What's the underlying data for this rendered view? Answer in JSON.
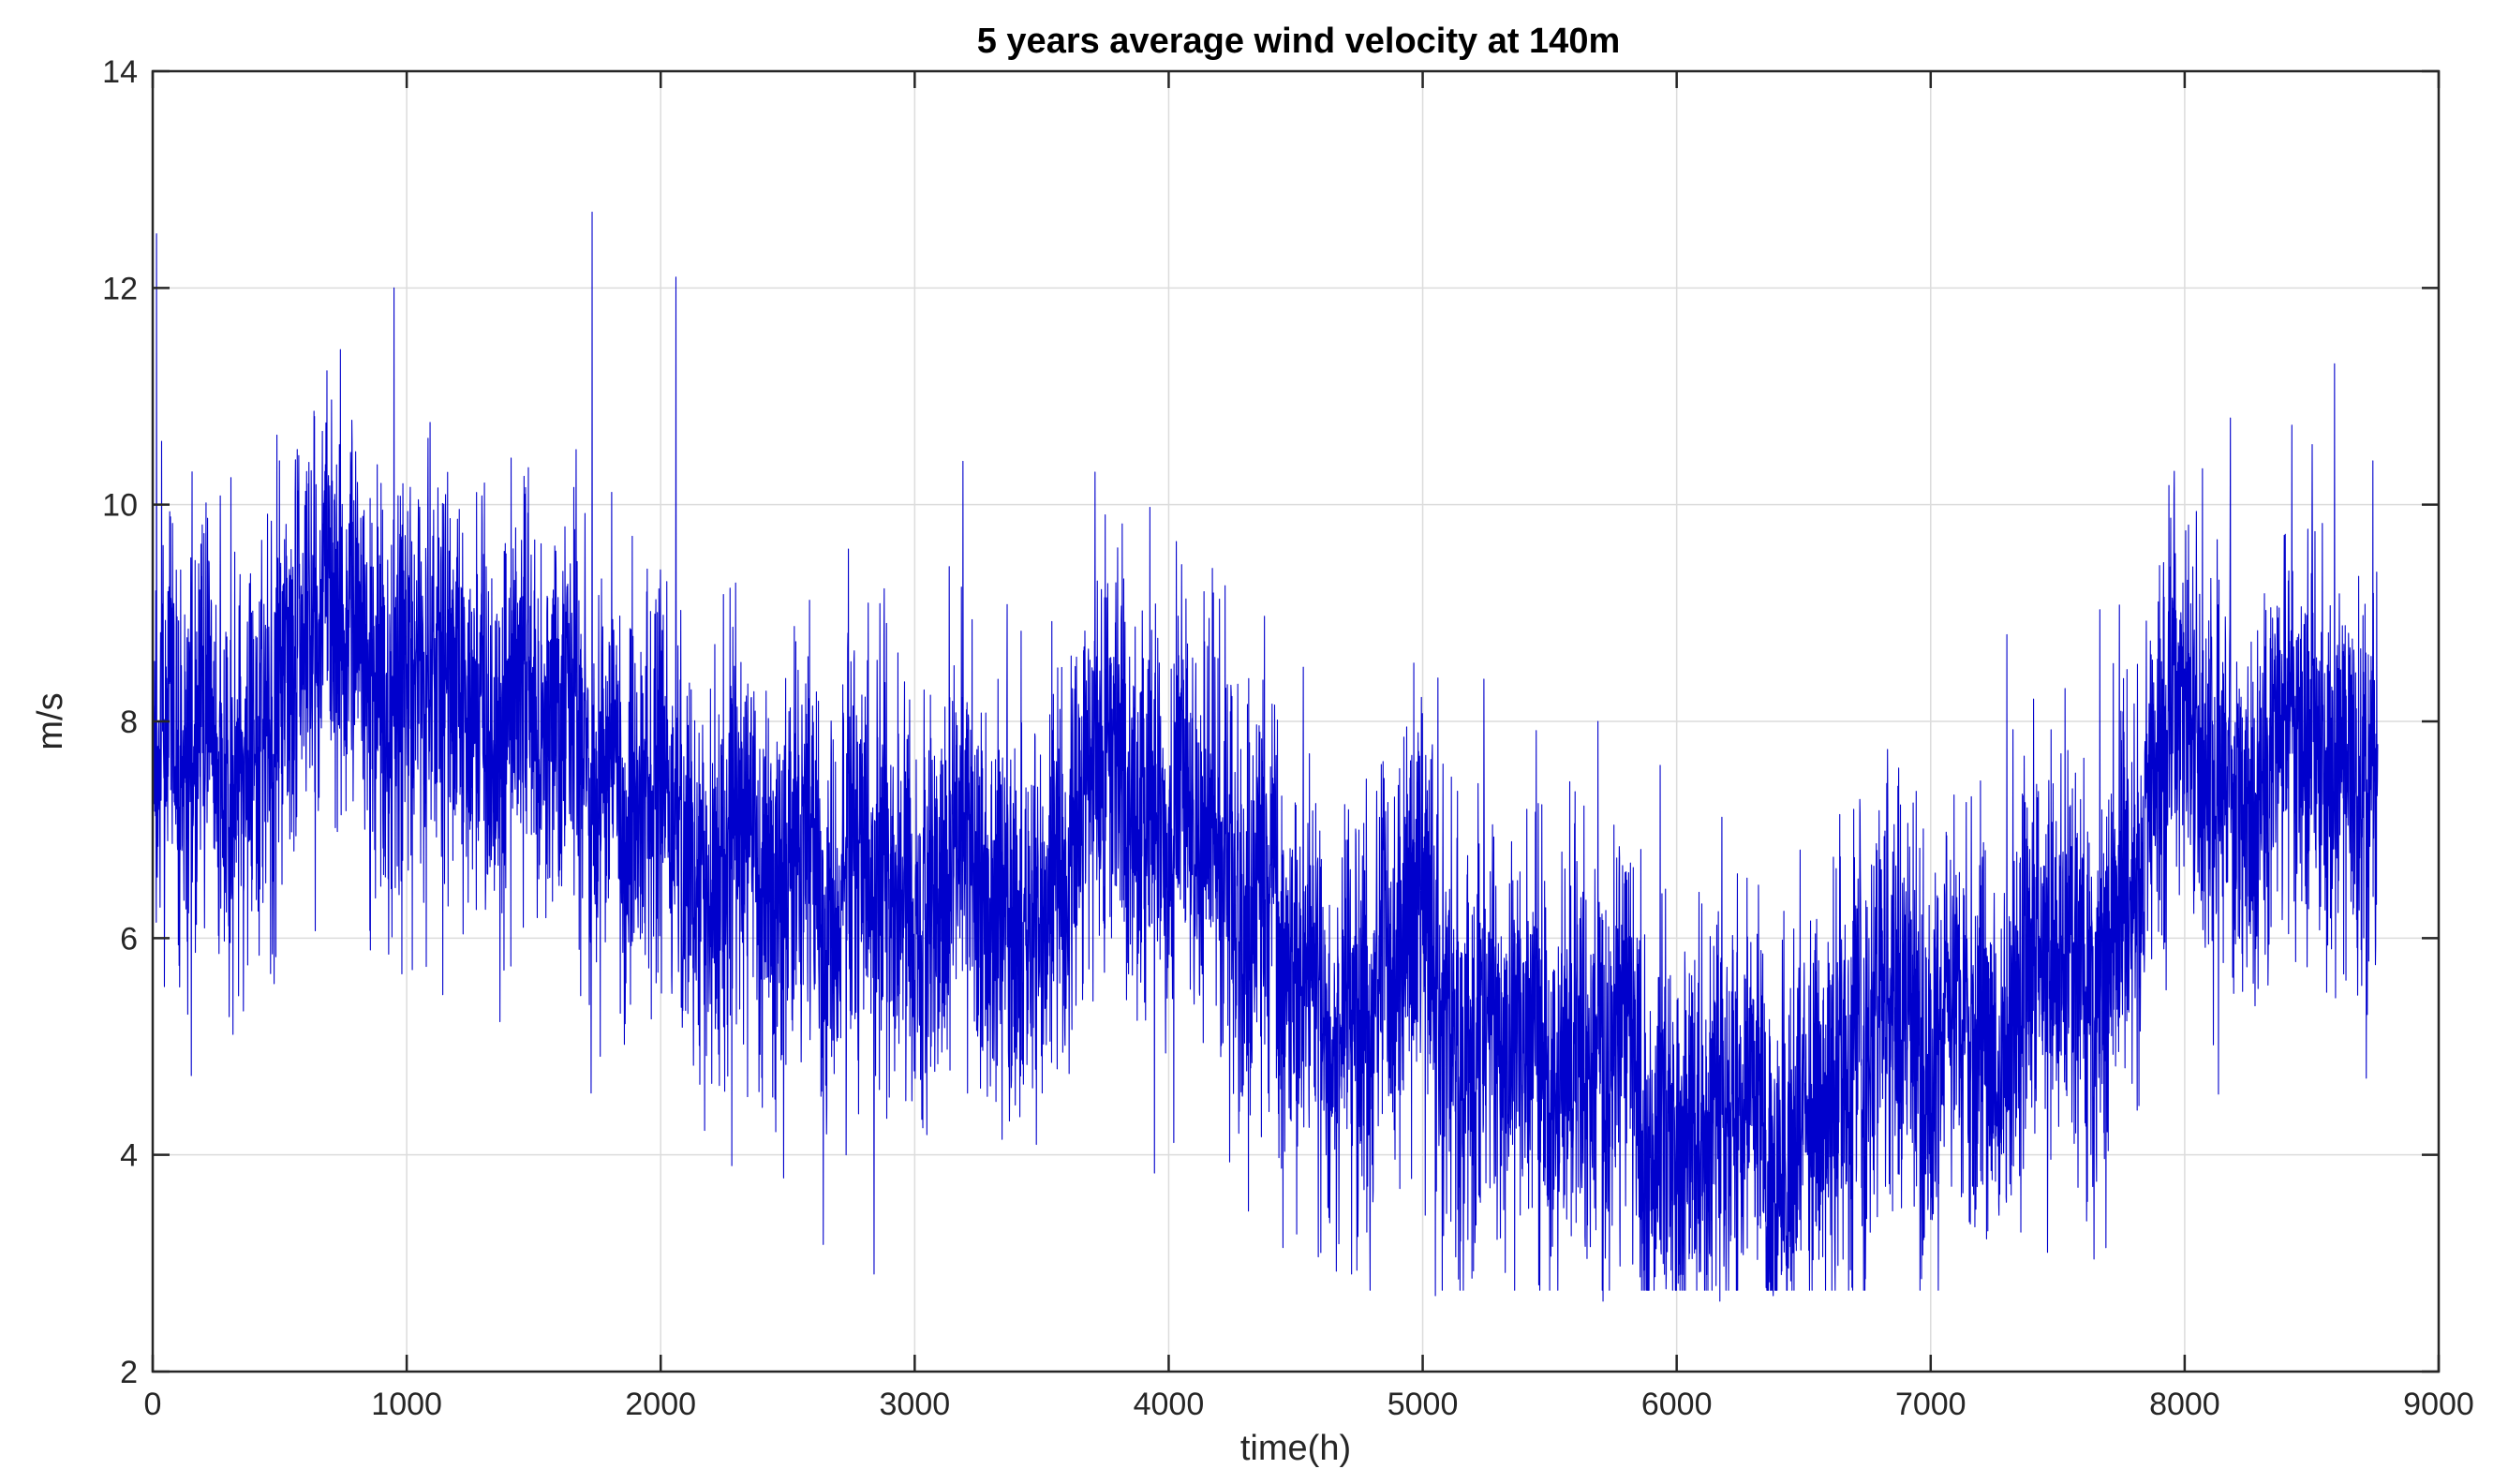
{
  "chart_data": {
    "type": "line",
    "title": "5 years average wind velocity at 140m",
    "xlabel": "time(h)",
    "ylabel": "m/s",
    "xlim": [
      0,
      9000
    ],
    "ylim": [
      2,
      14
    ],
    "xticks": [
      0,
      1000,
      2000,
      3000,
      4000,
      5000,
      6000,
      7000,
      8000,
      9000
    ],
    "xtick_labels": [
      "0",
      "1000",
      "2000",
      "3000",
      "4000",
      "5000",
      "6000",
      "7000",
      "8000",
      "9000"
    ],
    "yticks": [
      2,
      4,
      6,
      8,
      10,
      12,
      14
    ],
    "ytick_labels": [
      "2",
      "4",
      "6",
      "8",
      "10",
      "12",
      "14"
    ],
    "grid": true,
    "series_color": "#0000cc",
    "series": [
      {
        "name": "wind velocity",
        "x_start": 0,
        "x_end": 8760,
        "trend": {
          "x": [
            0,
            500,
            1000,
            1500,
            2000,
            2500,
            3000,
            3500,
            4000,
            4500,
            5000,
            5500,
            6000,
            6500,
            7000,
            7500,
            8000,
            8500,
            8760
          ],
          "y": [
            8.0,
            8.3,
            8.7,
            8.2,
            7.4,
            7.0,
            6.9,
            6.6,
            6.7,
            5.7,
            5.2,
            4.9,
            4.6,
            4.5,
            5.0,
            6.0,
            7.0,
            7.3,
            7.6
          ]
        },
        "spread_std": 1.15,
        "peaks": [
          {
            "x": 15,
            "y": 12.5
          },
          {
            "x": 1730,
            "y": 12.7
          },
          {
            "x": 2060,
            "y": 12.1
          },
          {
            "x": 950,
            "y": 12.0
          },
          {
            "x": 3190,
            "y": 10.4
          },
          {
            "x": 3710,
            "y": 10.3
          },
          {
            "x": 8590,
            "y": 11.3
          },
          {
            "x": 8180,
            "y": 10.8
          },
          {
            "x": 4530,
            "y": 8.5
          },
          {
            "x": 5060,
            "y": 8.4
          },
          {
            "x": 5690,
            "y": 8.0
          },
          {
            "x": 7300,
            "y": 8.8
          }
        ],
        "troughs": [
          {
            "x": 2840,
            "y": 2.9
          },
          {
            "x": 5050,
            "y": 2.7
          },
          {
            "x": 5710,
            "y": 2.65
          },
          {
            "x": 6170,
            "y": 2.65
          },
          {
            "x": 6380,
            "y": 2.7
          },
          {
            "x": 4720,
            "y": 2.9
          },
          {
            "x": 2280,
            "y": 3.9
          },
          {
            "x": 2730,
            "y": 4.0
          },
          {
            "x": 7460,
            "y": 3.1
          },
          {
            "x": 7580,
            "y": 3.7
          }
        ]
      }
    ]
  }
}
